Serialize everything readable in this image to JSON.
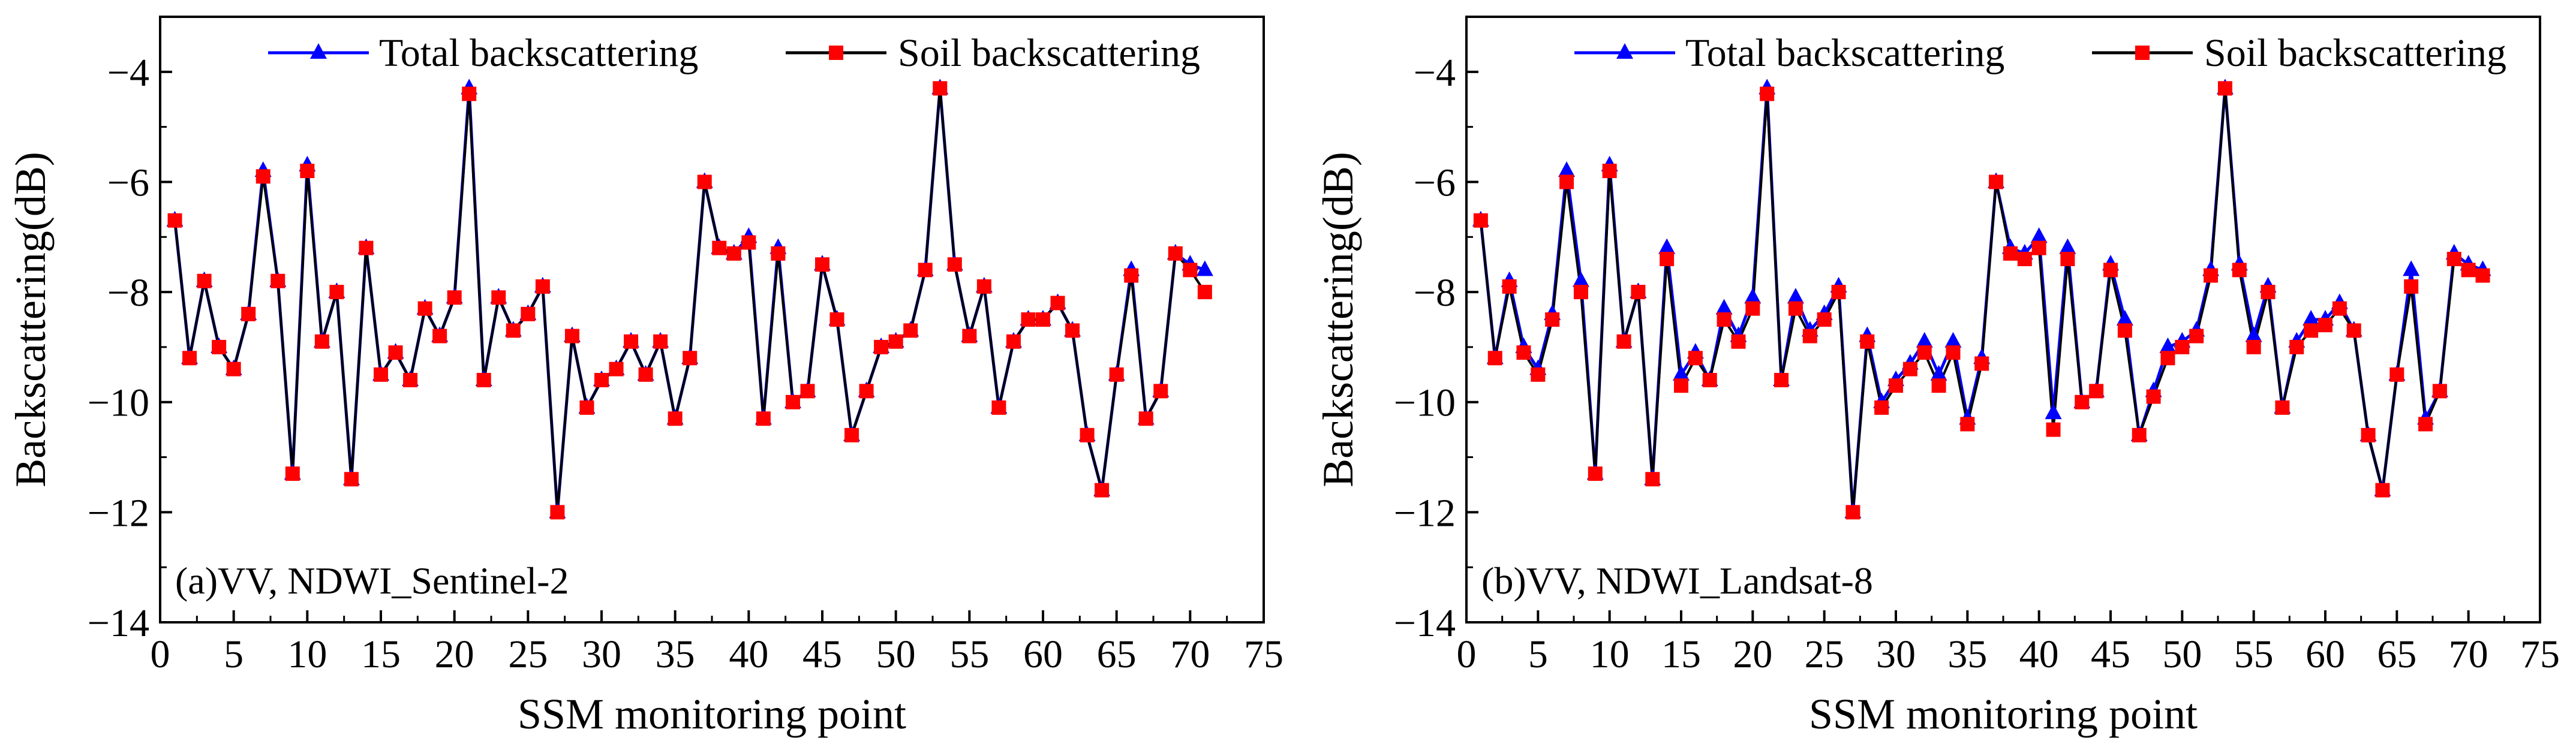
{
  "chart_data": [
    {
      "type": "line",
      "panel_label": "(a)VV, NDWI_Sentinel-2",
      "xlabel": "SSM monitoring point",
      "ylabel": "Backscattering(dB)",
      "xlim": [
        0,
        75
      ],
      "ylim": [
        -14,
        -3
      ],
      "xticks": [
        0,
        5,
        10,
        15,
        20,
        25,
        30,
        35,
        40,
        45,
        50,
        55,
        60,
        65,
        70,
        75
      ],
      "yticks": [
        -14,
        -12,
        -10,
        -8,
        -6,
        -4
      ],
      "legend_position": "top-right",
      "grid": false,
      "x": [
        1,
        2,
        3,
        4,
        5,
        6,
        7,
        8,
        9,
        10,
        11,
        12,
        13,
        14,
        15,
        16,
        17,
        18,
        19,
        20,
        21,
        22,
        23,
        24,
        25,
        26,
        27,
        28,
        29,
        30,
        31,
        32,
        33,
        34,
        35,
        36,
        37,
        38,
        39,
        40,
        41,
        42,
        43,
        44,
        45,
        46,
        47,
        48,
        49,
        50,
        51,
        52,
        53,
        54,
        55,
        56,
        57,
        58,
        59,
        60,
        61,
        62,
        63,
        64,
        65,
        66,
        67,
        68,
        69,
        70,
        71
      ],
      "series": [
        {
          "name": "Total backscattering",
          "color": "#0000ff",
          "marker": "triangle",
          "values": [
            -6.7,
            -9.2,
            -7.8,
            -9.0,
            -9.4,
            -8.4,
            -5.8,
            -7.8,
            -11.3,
            -5.7,
            -8.9,
            -8.0,
            -11.4,
            -7.2,
            -9.5,
            -9.1,
            -9.6,
            -8.3,
            -8.8,
            -8.1,
            -4.3,
            -9.6,
            -8.1,
            -8.7,
            -8.4,
            -7.9,
            -12.0,
            -8.8,
            -10.1,
            -9.6,
            -9.4,
            -8.9,
            -9.5,
            -8.9,
            -10.3,
            -9.2,
            -6.0,
            -7.2,
            -7.3,
            -7.0,
            -10.3,
            -7.2,
            -10.0,
            -9.8,
            -7.5,
            -8.5,
            -10.6,
            -9.8,
            -9.0,
            -8.9,
            -8.7,
            -7.6,
            -4.3,
            -7.5,
            -8.8,
            -7.9,
            -10.1,
            -8.9,
            -8.5,
            -8.5,
            -8.2,
            -8.7,
            -10.6,
            -11.6,
            -9.5,
            -7.6,
            -10.3,
            -9.8,
            -7.3,
            -7.5,
            -7.6
          ]
        },
        {
          "name": "Soil backscattering",
          "color": "#ff0000",
          "marker": "square",
          "values": [
            -6.7,
            -9.2,
            -7.8,
            -9.0,
            -9.4,
            -8.4,
            -5.9,
            -7.8,
            -11.3,
            -5.8,
            -8.9,
            -8.0,
            -11.4,
            -7.2,
            -9.5,
            -9.1,
            -9.6,
            -8.3,
            -8.8,
            -8.1,
            -4.4,
            -9.6,
            -8.1,
            -8.7,
            -8.4,
            -7.9,
            -12.0,
            -8.8,
            -10.1,
            -9.6,
            -9.4,
            -8.9,
            -9.5,
            -8.9,
            -10.3,
            -9.2,
            -6.0,
            -7.2,
            -7.3,
            -7.1,
            -10.3,
            -7.3,
            -10.0,
            -9.8,
            -7.5,
            -8.5,
            -10.6,
            -9.8,
            -9.0,
            -8.9,
            -8.7,
            -7.6,
            -4.3,
            -7.5,
            -8.8,
            -7.9,
            -10.1,
            -8.9,
            -8.5,
            -8.5,
            -8.2,
            -8.7,
            -10.6,
            -11.6,
            -9.5,
            -7.7,
            -10.3,
            -9.8,
            -7.3,
            -7.6,
            -8.0
          ]
        }
      ]
    },
    {
      "type": "line",
      "panel_label": "(b)VV, NDWI_Landsat-8",
      "xlabel": "SSM monitoring point",
      "ylabel": "Backscattering(dB)",
      "xlim": [
        0,
        75
      ],
      "ylim": [
        -14,
        -3
      ],
      "xticks": [
        0,
        5,
        10,
        15,
        20,
        25,
        30,
        35,
        40,
        45,
        50,
        55,
        60,
        65,
        70,
        75
      ],
      "yticks": [
        -14,
        -12,
        -10,
        -8,
        -6,
        -4
      ],
      "legend_position": "top-right",
      "grid": false,
      "x": [
        1,
        2,
        3,
        4,
        5,
        6,
        7,
        8,
        9,
        10,
        11,
        12,
        13,
        14,
        15,
        16,
        17,
        18,
        19,
        20,
        21,
        22,
        23,
        24,
        25,
        26,
        27,
        28,
        29,
        30,
        31,
        32,
        33,
        34,
        35,
        36,
        37,
        38,
        39,
        40,
        41,
        42,
        43,
        44,
        45,
        46,
        47,
        48,
        49,
        50,
        51,
        52,
        53,
        54,
        55,
        56,
        57,
        58,
        59,
        60,
        61,
        62,
        63,
        64,
        65,
        66,
        67,
        68,
        69,
        70,
        71
      ],
      "series": [
        {
          "name": "Total backscattering",
          "color": "#0000ff",
          "marker": "triangle",
          "values": [
            -6.7,
            -9.2,
            -7.8,
            -9.0,
            -9.4,
            -8.4,
            -5.8,
            -7.8,
            -11.3,
            -5.7,
            -8.9,
            -8.0,
            -11.4,
            -7.2,
            -9.5,
            -9.1,
            -9.6,
            -8.3,
            -8.8,
            -8.1,
            -4.3,
            -9.6,
            -8.1,
            -8.7,
            -8.4,
            -7.9,
            -12.0,
            -8.8,
            -10.0,
            -9.6,
            -9.3,
            -8.9,
            -9.5,
            -8.9,
            -10.3,
            -9.2,
            -6.0,
            -7.2,
            -7.3,
            -7.0,
            -10.2,
            -7.2,
            -10.0,
            -9.8,
            -7.5,
            -8.5,
            -10.6,
            -9.8,
            -9.0,
            -8.9,
            -8.7,
            -7.6,
            -4.3,
            -7.5,
            -8.8,
            -7.9,
            -10.1,
            -8.9,
            -8.5,
            -8.5,
            -8.2,
            -8.7,
            -10.6,
            -11.6,
            -9.5,
            -7.6,
            -10.3,
            -9.8,
            -7.3,
            -7.5,
            -7.6
          ]
        },
        {
          "name": "Soil backscattering",
          "color": "#ff0000",
          "marker": "square",
          "values": [
            -6.7,
            -9.2,
            -7.9,
            -9.1,
            -9.5,
            -8.5,
            -6.0,
            -8.0,
            -11.3,
            -5.8,
            -8.9,
            -8.0,
            -11.4,
            -7.4,
            -9.7,
            -9.2,
            -9.6,
            -8.5,
            -8.9,
            -8.3,
            -4.4,
            -9.6,
            -8.3,
            -8.8,
            -8.5,
            -8.0,
            -12.0,
            -8.9,
            -10.1,
            -9.7,
            -9.4,
            -9.1,
            -9.7,
            -9.1,
            -10.4,
            -9.3,
            -6.0,
            -7.3,
            -7.4,
            -7.2,
            -10.5,
            -7.4,
            -10.0,
            -9.8,
            -7.6,
            -8.7,
            -10.6,
            -9.9,
            -9.2,
            -9.0,
            -8.8,
            -7.7,
            -4.3,
            -7.6,
            -9.0,
            -8.0,
            -10.1,
            -9.0,
            -8.7,
            -8.6,
            -8.3,
            -8.7,
            -10.6,
            -11.6,
            -9.5,
            -7.9,
            -10.4,
            -9.8,
            -7.4,
            -7.6,
            -7.7
          ]
        }
      ]
    }
  ]
}
